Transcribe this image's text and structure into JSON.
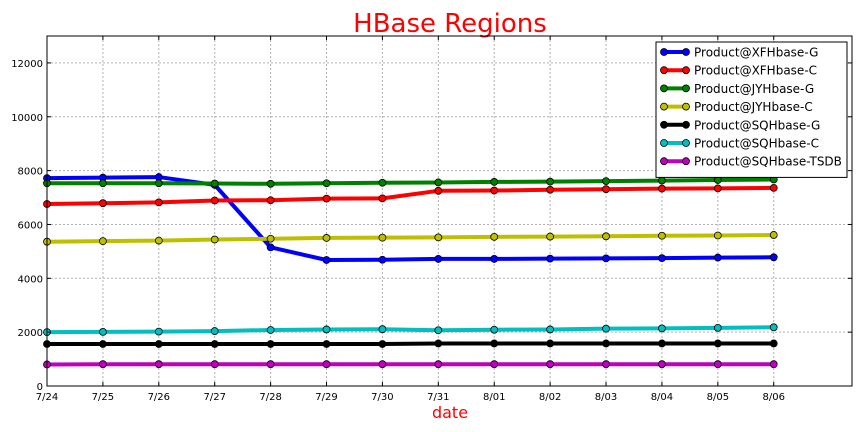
{
  "chart_data": {
    "type": "line",
    "title": "HBase Regions",
    "xlabel": "date",
    "ylabel": "",
    "categories": [
      "7/24",
      "7/25",
      "7/26",
      "7/27",
      "7/28",
      "7/29",
      "7/30",
      "7/31",
      "8/01",
      "8/02",
      "8/03",
      "8/04",
      "8/05",
      "8/06"
    ],
    "xlim": [
      0,
      14.4
    ],
    "ylim": [
      0,
      13000
    ],
    "yticks": [
      0,
      2000,
      4000,
      6000,
      8000,
      10000,
      12000
    ],
    "grid": true,
    "legend_position": "top-right",
    "series": [
      {
        "name": "Product@XFHbase-G",
        "color": "#0000ff",
        "values": [
          7720,
          7740,
          7760,
          7470,
          5150,
          4680,
          4690,
          4720,
          4720,
          4730,
          4740,
          4750,
          4770,
          4780
        ]
      },
      {
        "name": "Product@XFHbase-C",
        "color": "#ff0000",
        "values": [
          6760,
          6790,
          6820,
          6890,
          6900,
          6960,
          6970,
          7250,
          7260,
          7290,
          7310,
          7330,
          7340,
          7360
        ]
      },
      {
        "name": "Product@JYHbase-G",
        "color": "#008000",
        "values": [
          7530,
          7530,
          7530,
          7520,
          7510,
          7530,
          7550,
          7560,
          7580,
          7590,
          7610,
          7630,
          7650,
          7670
        ]
      },
      {
        "name": "Product@JYHbase-C",
        "color": "#bfbf00",
        "values": [
          5360,
          5380,
          5400,
          5440,
          5470,
          5500,
          5510,
          5520,
          5540,
          5550,
          5560,
          5580,
          5590,
          5610
        ]
      },
      {
        "name": "Product@SQHbase-G",
        "color": "#000000",
        "values": [
          1560,
          1560,
          1560,
          1560,
          1560,
          1560,
          1560,
          1580,
          1580,
          1580,
          1580,
          1580,
          1580,
          1580
        ]
      },
      {
        "name": "Product@SQHbase-C",
        "color": "#00bfbf",
        "values": [
          2000,
          2010,
          2020,
          2040,
          2080,
          2100,
          2110,
          2070,
          2090,
          2100,
          2130,
          2140,
          2160,
          2180
        ]
      },
      {
        "name": "Product@SQHbase-TSDB",
        "color": "#bf00bf",
        "values": [
          800,
          810,
          810,
          810,
          810,
          810,
          810,
          810,
          810,
          810,
          810,
          810,
          810,
          810
        ]
      }
    ]
  }
}
